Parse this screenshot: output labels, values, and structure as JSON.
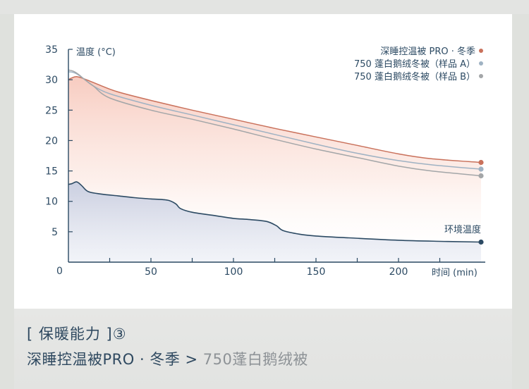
{
  "caption": {
    "bracket_open": "[ ",
    "title": "保暖能力",
    "bracket_close": " ]",
    "footnote_mark": "③",
    "product": "深睡控温被PRO · 冬季",
    "comparator": ">",
    "competitor": "750蓬白鹅绒被"
  },
  "chart_data": {
    "type": "line",
    "ylabel": "温度 (°C)",
    "xlabel": "时间 (min)",
    "xlim": [
      0,
      250
    ],
    "ylim": [
      0,
      35
    ],
    "xticks": [
      50,
      100,
      150,
      200
    ],
    "yticks": [
      5,
      10,
      15,
      20,
      25,
      30,
      35
    ],
    "origin_label": "0",
    "legend_position": "top-right",
    "grid": false,
    "series": [
      {
        "name": "深睡控温被 PRO · 冬季",
        "color": "#c9715b",
        "fill": "red",
        "x": [
          0,
          2,
          5,
          10,
          20,
          30,
          50,
          75,
          100,
          125,
          150,
          175,
          200,
          220,
          250
        ],
        "y": [
          30.0,
          30.3,
          30.5,
          30.1,
          29.0,
          28.0,
          26.6,
          25.0,
          23.5,
          22.0,
          20.6,
          19.2,
          17.8,
          17.0,
          16.4
        ]
      },
      {
        "name": "750 蓬白鹅绒冬被（样品 A）",
        "color": "#9fb2c3",
        "x": [
          0,
          3,
          6,
          10,
          15,
          25,
          50,
          75,
          100,
          125,
          150,
          175,
          200,
          220,
          250
        ],
        "y": [
          31.3,
          31.2,
          30.8,
          30.0,
          29.0,
          27.7,
          25.8,
          24.2,
          22.6,
          21.0,
          19.4,
          17.9,
          16.7,
          16.0,
          15.3
        ]
      },
      {
        "name": "750 蓬白鹅绒冬被（样品 B）",
        "color": "#a3a6a8",
        "x": [
          0,
          3,
          6,
          10,
          15,
          25,
          50,
          75,
          100,
          125,
          150,
          175,
          200,
          220,
          250
        ],
        "y": [
          31.6,
          31.4,
          30.9,
          30.0,
          29.0,
          27.0,
          25.0,
          23.5,
          21.9,
          20.2,
          18.6,
          17.2,
          15.8,
          15.0,
          14.2
        ]
      },
      {
        "name": "环境温度",
        "color": "#2c4a63",
        "fill": "blue",
        "x": [
          0,
          2,
          5,
          8,
          12,
          20,
          30,
          40,
          50,
          60,
          65,
          68,
          75,
          90,
          100,
          110,
          120,
          126,
          130,
          140,
          150,
          170,
          200,
          230,
          250
        ],
        "y": [
          12.8,
          12.9,
          13.2,
          12.6,
          11.6,
          11.2,
          10.9,
          10.6,
          10.4,
          10.2,
          9.6,
          8.8,
          8.2,
          7.6,
          7.2,
          7.0,
          6.7,
          6.0,
          5.2,
          4.6,
          4.3,
          4.0,
          3.6,
          3.4,
          3.3
        ]
      }
    ]
  }
}
